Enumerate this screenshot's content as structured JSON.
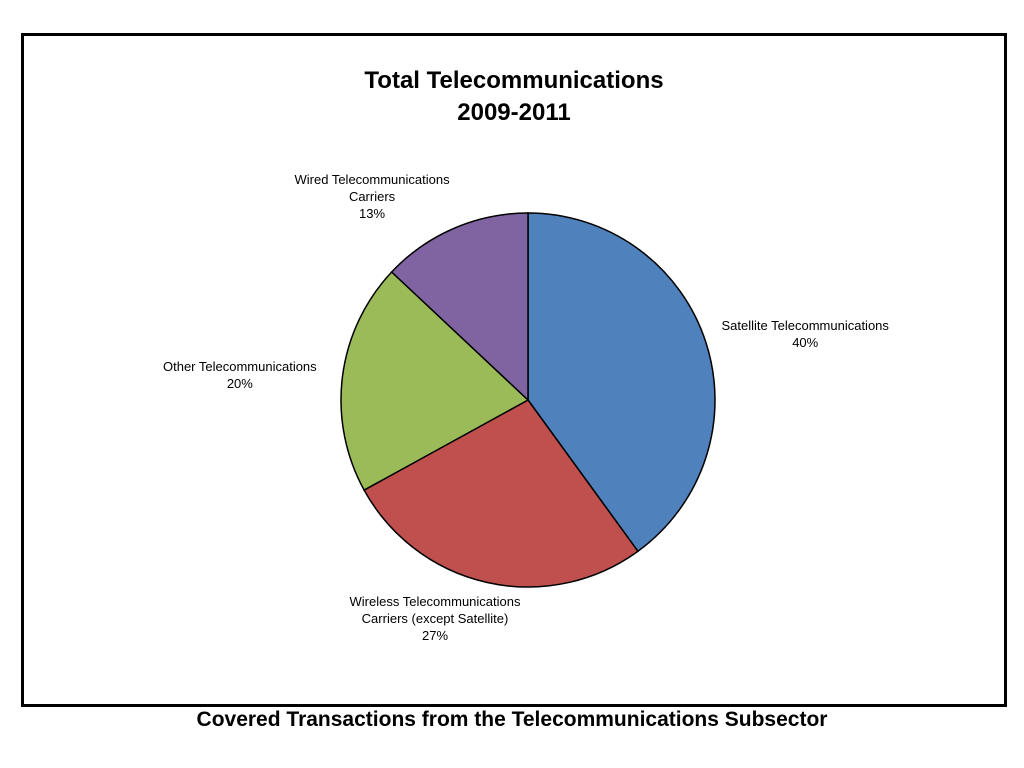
{
  "chart_data": {
    "type": "pie",
    "title": [
      "Total Telecommunications",
      "2009-2011"
    ],
    "slices": [
      {
        "label": [
          "Satellite Telecommunications"
        ],
        "value": 40,
        "value_label": "40%",
        "color": "#4F81BD"
      },
      {
        "label": [
          "Wireless Telecommunications",
          "Carriers (except Satellite)"
        ],
        "value": 27,
        "value_label": "27%",
        "color": "#C0504D"
      },
      {
        "label": [
          "Other Telecommunications"
        ],
        "value": 20,
        "value_label": "20%",
        "color": "#9BBB59"
      },
      {
        "label": [
          "Wired Telecommunications",
          "Carriers"
        ],
        "value": 13,
        "value_label": "13%",
        "color": "#8064A2"
      }
    ],
    "start_angle": "12 o'clock",
    "direction": "clockwise",
    "legend": "none"
  },
  "caption": "Covered Transactions from the Telecommunications Subsector"
}
